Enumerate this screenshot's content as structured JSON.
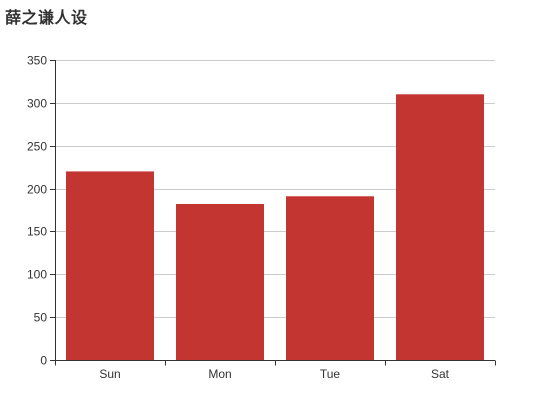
{
  "chart_data": {
    "type": "bar",
    "title": "薛之谦人设",
    "categories": [
      "Sun",
      "Mon",
      "Tue",
      "Sat"
    ],
    "values": [
      220,
      182,
      191,
      310
    ],
    "ylim": [
      0,
      350
    ],
    "yticks": [
      0,
      50,
      100,
      150,
      200,
      250,
      300,
      350
    ],
    "grid": true,
    "colors": {
      "bar": "#c23531",
      "grid": "#cccccc",
      "axis": "#333333"
    }
  }
}
